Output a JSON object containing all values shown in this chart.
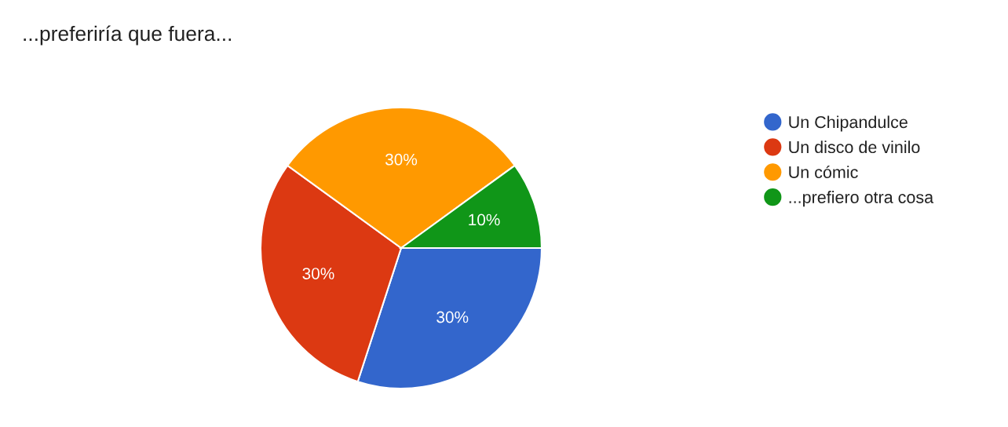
{
  "chart_data": {
    "type": "pie",
    "title": "...preferiría que fuera...",
    "categories": [
      "Un Chipandulce",
      "Un disco de vinilo",
      "Un cómic",
      "...prefiero otra cosa"
    ],
    "values": [
      30,
      30,
      30,
      10
    ],
    "value_labels": [
      "30%",
      "30%",
      "30%",
      "10%"
    ],
    "colors": [
      "#3366cc",
      "#dc3912",
      "#ff9900",
      "#109618"
    ],
    "legend": "right"
  }
}
